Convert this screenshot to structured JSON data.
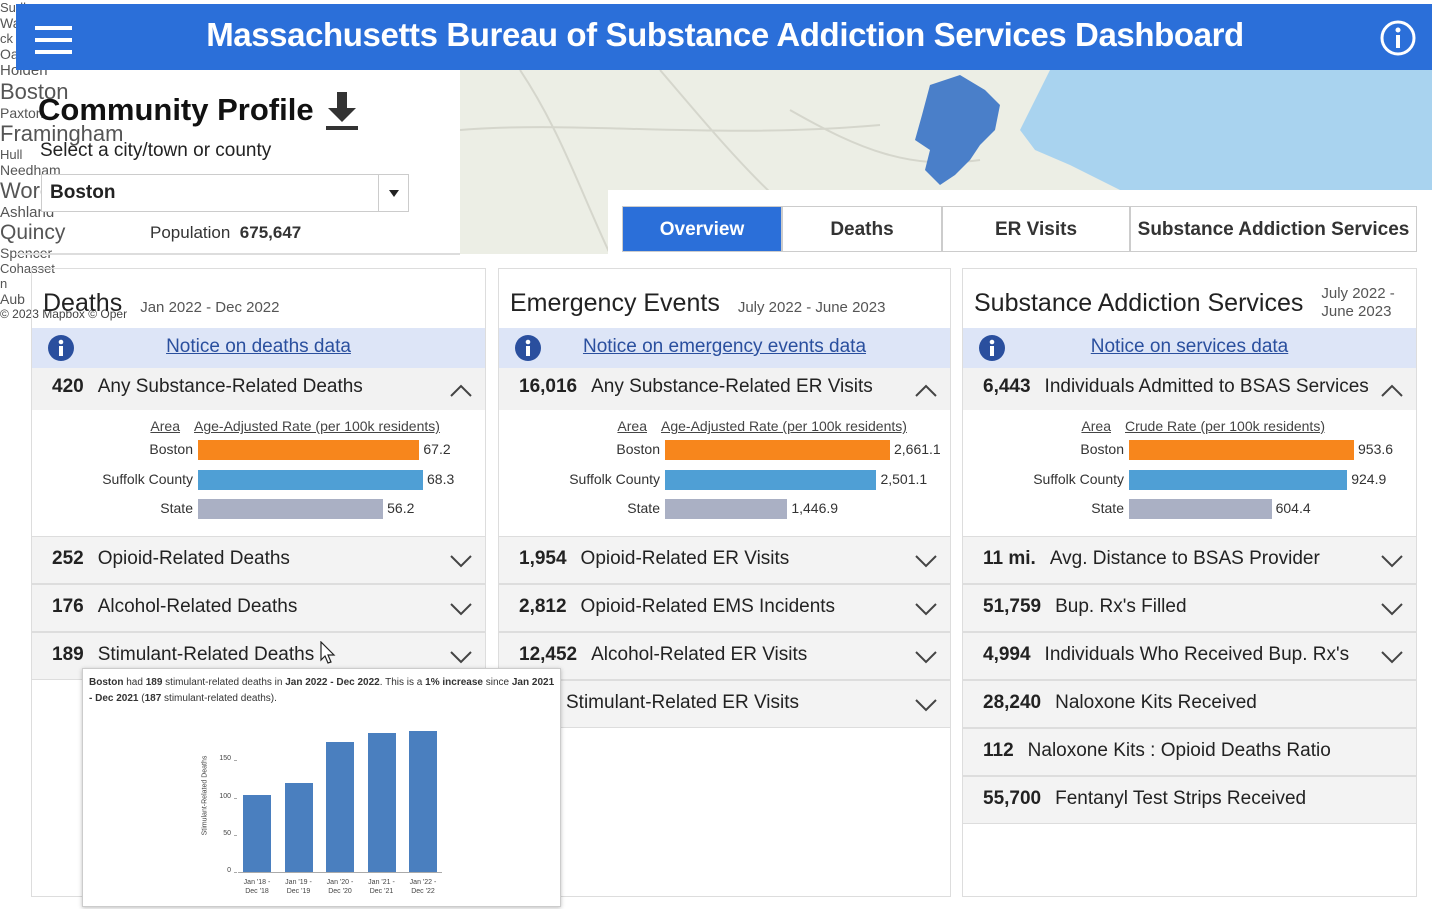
{
  "header": {
    "title": "Massachusetts Bureau of Substance Addiction Services Dashboard"
  },
  "profile": {
    "title": "Community Profile",
    "prompt": "Select a city/town or county",
    "selected": "Boston",
    "population_label": "Population",
    "population": "675,647"
  },
  "map": {
    "labels": [
      "Sudbury",
      "Waltham",
      "ck",
      "Oakham",
      "Holden",
      "Boston",
      "Paxton",
      "Framingham",
      "Hull",
      "Needham",
      "Worcester",
      "Ashland",
      "Quincy",
      "Spencer",
      "Cohasset",
      "n",
      "Aub"
    ],
    "attribution": "© 2023 Mapbox © Oper"
  },
  "tabs": {
    "items": [
      "Overview",
      "Deaths",
      "ER Visits",
      "Substance Addiction Services"
    ],
    "active": 0
  },
  "panels": [
    {
      "title": "Deaths",
      "period": "Jan 2022 - Dec 2022",
      "notice": "Notice on deaths data",
      "expanded": {
        "value": 420,
        "label": "Any Substance-Related Deaths",
        "chart": {
          "type": "bar",
          "area_header": "Area",
          "rate_header": "Age-Adjusted Rate (per 100k residents)",
          "categories": [
            "Boston",
            "Suffolk County",
            "State"
          ],
          "values": [
            67.2,
            68.3,
            56.2
          ],
          "colors": [
            "#f7861c",
            "#4f9fd5",
            "#aab0c4"
          ]
        }
      },
      "items": [
        {
          "value": 252,
          "label": "Opioid-Related Deaths"
        },
        {
          "value": 176,
          "label": "Alcohol-Related Deaths"
        },
        {
          "value": 189,
          "label": "Stimulant-Related Deaths"
        }
      ]
    },
    {
      "title": "Emergency Events",
      "period": "July 2022 - June 2023",
      "notice": "Notice on emergency events data",
      "expanded": {
        "value": "16,016",
        "label": "Any Substance-Related ER Visits",
        "chart": {
          "type": "bar",
          "area_header": "Area",
          "rate_header": "Age-Adjusted Rate (per 100k residents)",
          "categories": [
            "Boston",
            "Suffolk County",
            "State"
          ],
          "values": [
            2661.1,
            2501.1,
            1446.9
          ],
          "value_labels": [
            "2,661.1",
            "2,501.1",
            "1,446.9"
          ],
          "colors": [
            "#f7861c",
            "#4f9fd5",
            "#aab0c4"
          ]
        }
      },
      "items": [
        {
          "value": "1,954",
          "label": "Opioid-Related ER Visits"
        },
        {
          "value": "2,812",
          "label": "Opioid-Related EMS Incidents"
        },
        {
          "value": "12,452",
          "label": "Alcohol-Related ER Visits"
        },
        {
          "label": "Stimulant-Related ER Visits"
        }
      ]
    },
    {
      "title": "Substance Addiction Services",
      "period": "July 2022 - June 2023",
      "notice": "Notice on services data",
      "expanded": {
        "value": "6,443",
        "label": "Individuals Admitted to BSAS Services",
        "chart": {
          "type": "bar",
          "area_header": "Area",
          "rate_header": "Crude Rate (per 100k residents)",
          "categories": [
            "Boston",
            "Suffolk County",
            "State"
          ],
          "values": [
            953.6,
            924.9,
            604.4
          ],
          "colors": [
            "#f7861c",
            "#4f9fd5",
            "#aab0c4"
          ]
        }
      },
      "items": [
        {
          "value": "11 mi.",
          "label": "Avg. Distance to BSAS Provider",
          "expandable": true
        },
        {
          "value": "51,759",
          "label": "Bup. Rx's Filled",
          "expandable": true
        },
        {
          "value": "4,994",
          "label": "Individuals Who Received Bup. Rx's",
          "expandable": true
        },
        {
          "value": "28,240",
          "label": "Naloxone Kits Received",
          "expandable": false
        },
        {
          "value": 112,
          "label": "Naloxone Kits : Opioid Deaths Ratio",
          "expandable": false
        },
        {
          "value": "55,700",
          "label": "Fentanyl Test Strips Received",
          "expandable": false
        }
      ]
    }
  ],
  "tooltip": {
    "segments": [
      {
        "text": "Boston",
        "bold": true
      },
      {
        "text": " had ",
        "bold": false
      },
      {
        "text": "189",
        "bold": true
      },
      {
        "text": " stimulant-related deaths in ",
        "bold": false
      },
      {
        "text": "Jan 2022 - Dec 2022",
        "bold": true
      },
      {
        "text": ". This is a ",
        "bold": false
      },
      {
        "text": "1% increase",
        "bold": true
      },
      {
        "text": " since ",
        "bold": false
      },
      {
        "text": "Jan 2021 - Dec 2021",
        "bold": true
      },
      {
        "text": " (",
        "bold": false
      },
      {
        "text": "187",
        "bold": true
      },
      {
        "text": " stimulant-related deaths).",
        "bold": false
      }
    ],
    "chart": {
      "type": "bar",
      "ylabel": "Stimulant-Related Deaths",
      "categories": [
        "Jan '18 - Dec '18",
        "Jan '19 - Dec '19",
        "Jan '20 - Dec '20",
        "Jan '21 - Dec '21",
        "Jan '22 - Dec '22"
      ],
      "values": [
        104,
        120,
        174,
        187,
        189
      ],
      "color": "#4a7fbf",
      "ylim": [
        0,
        200
      ],
      "yticks": [
        0,
        50,
        100,
        150
      ]
    }
  }
}
